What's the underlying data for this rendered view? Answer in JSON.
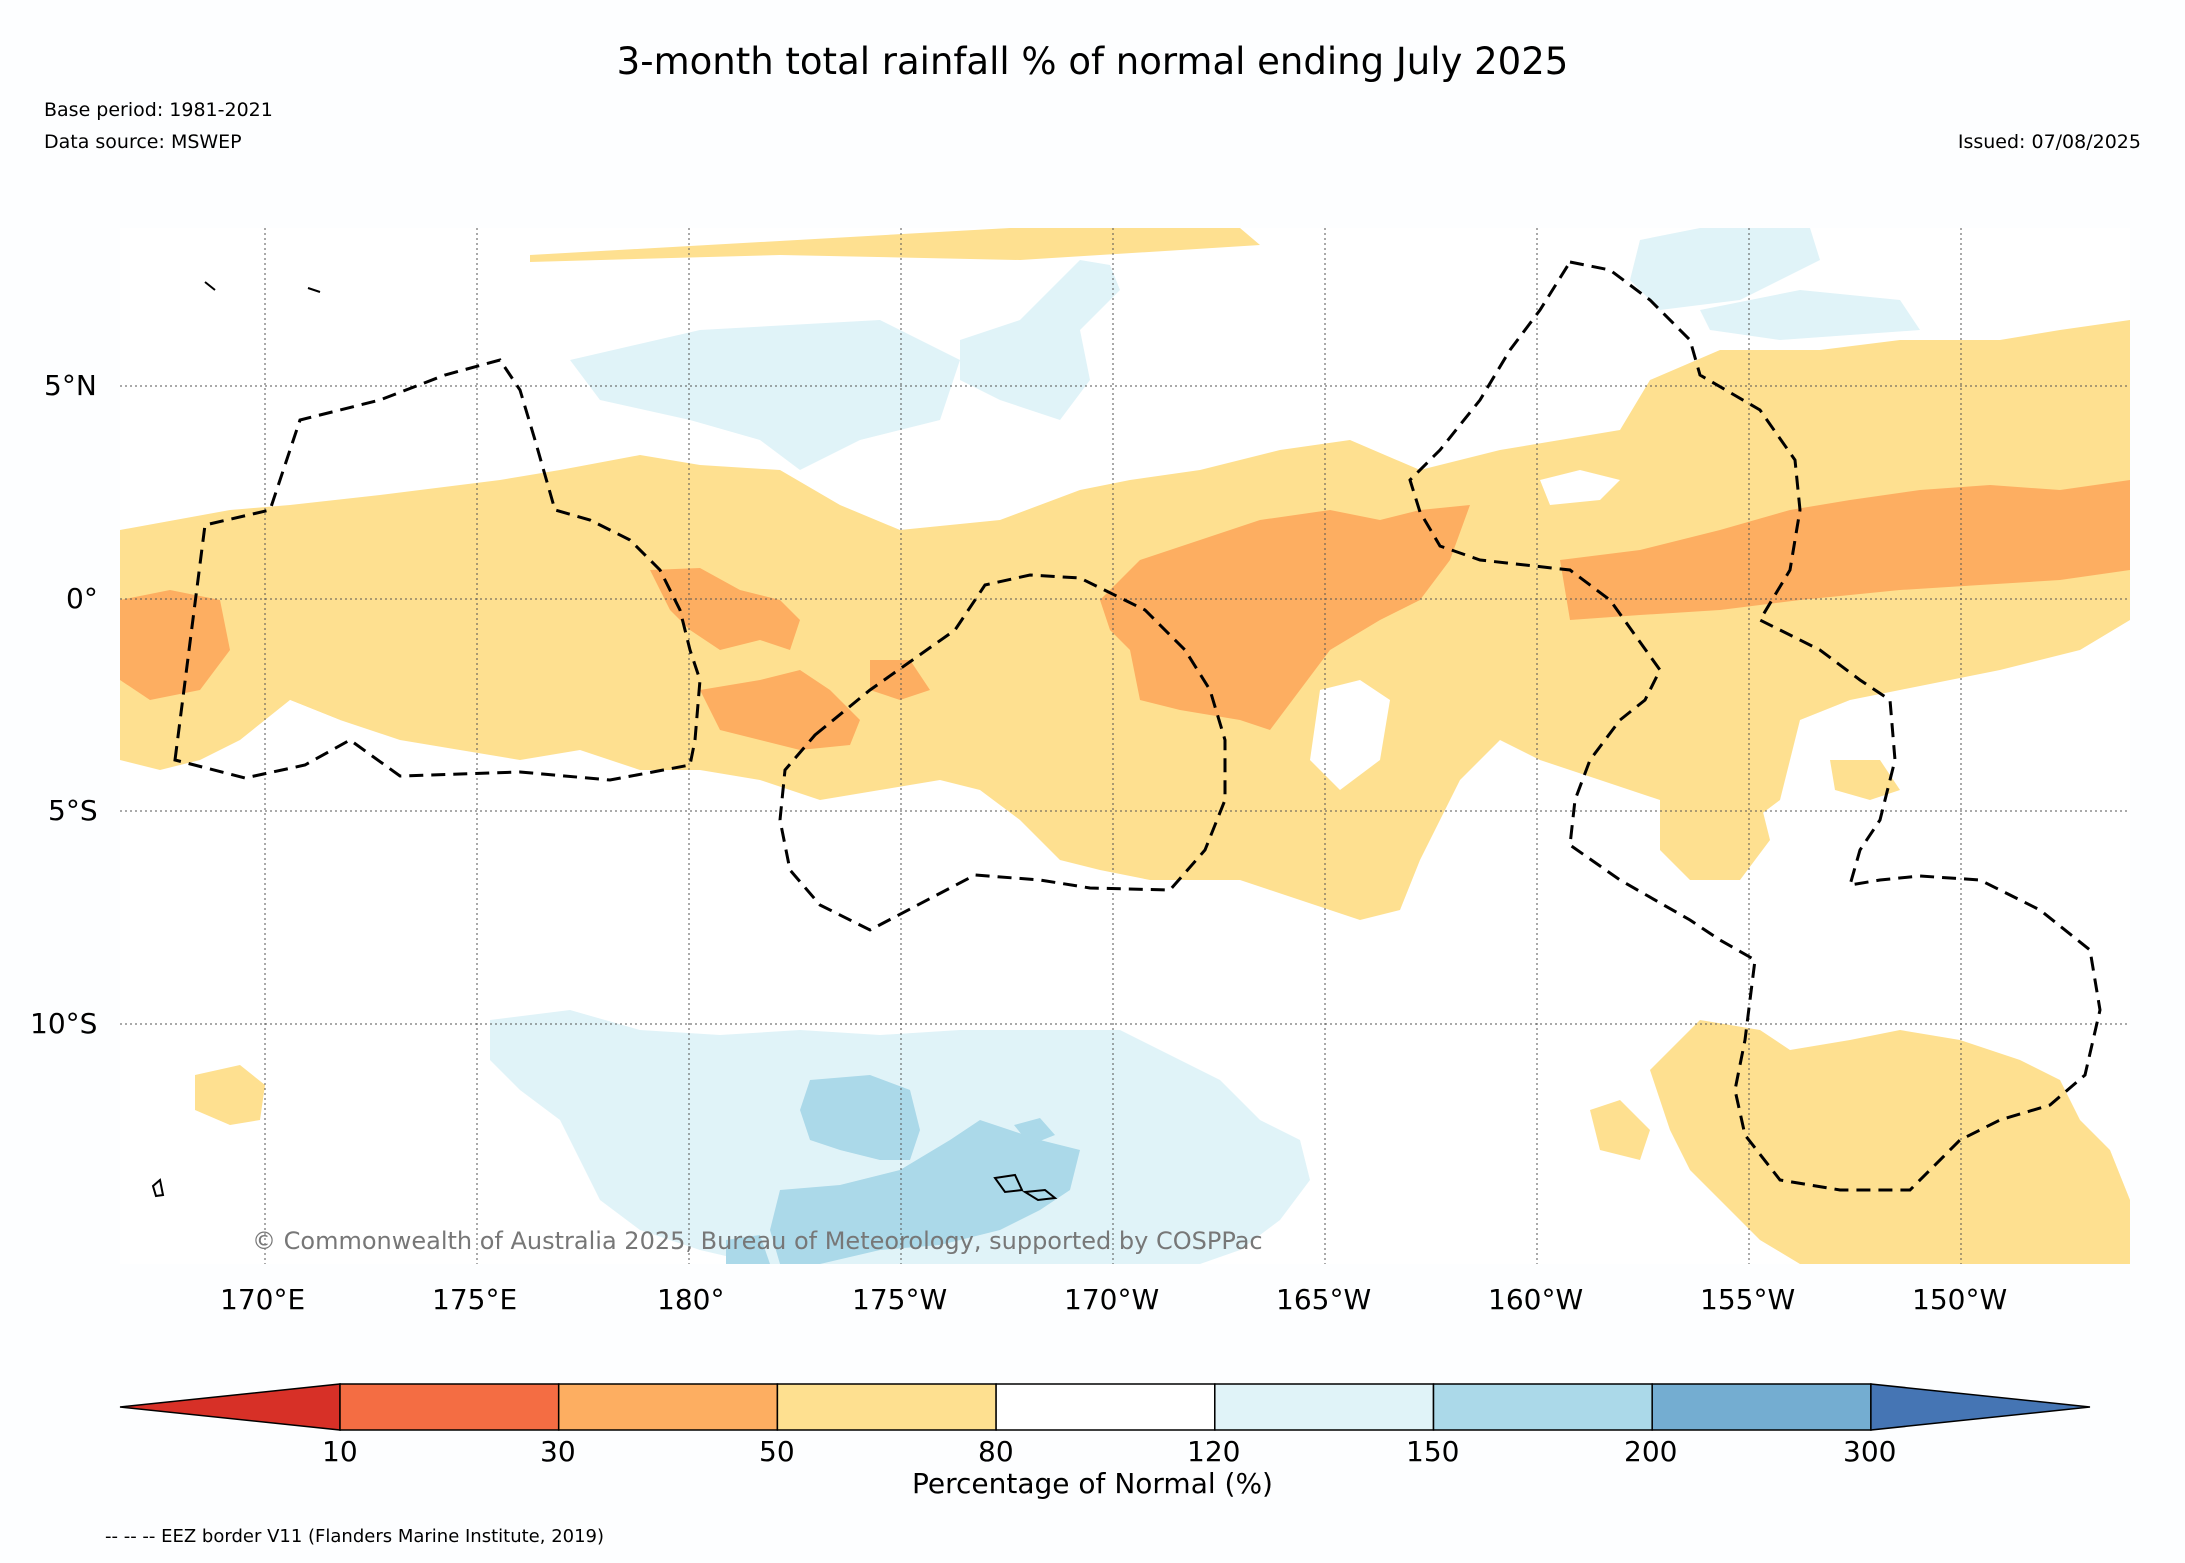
{
  "title": "3-month total rainfall % of normal ending July 2025",
  "base_period": "Base period: 1981-2021",
  "data_source": "Data source: MSWEP",
  "issued": "Issued: 07/08/2025",
  "copyright": "© Commonwealth of Australia 2025, Bureau of Meteorology, supported by COSPPac",
  "footnote": "-- -- -- EEZ border V11 (Flanders Marine Institute, 2019)",
  "map": {
    "lon_labels": [
      "170°E",
      "175°E",
      "180°",
      "175°W",
      "170°W",
      "165°W",
      "160°W",
      "155°W",
      "150°W"
    ],
    "lat_labels": [
      "5°N",
      "0°",
      "5°S",
      "10°S"
    ]
  },
  "colorbar": {
    "label": "Percentage of Normal (%)",
    "ticks": [
      "10",
      "30",
      "50",
      "80",
      "120",
      "150",
      "200",
      "300"
    ],
    "colors": [
      "#d73027",
      "#f46d43",
      "#fdae61",
      "#fee090",
      "#ffffff",
      "#e0f3f8",
      "#abd9e9",
      "#74add1",
      "#4575b4"
    ]
  }
}
